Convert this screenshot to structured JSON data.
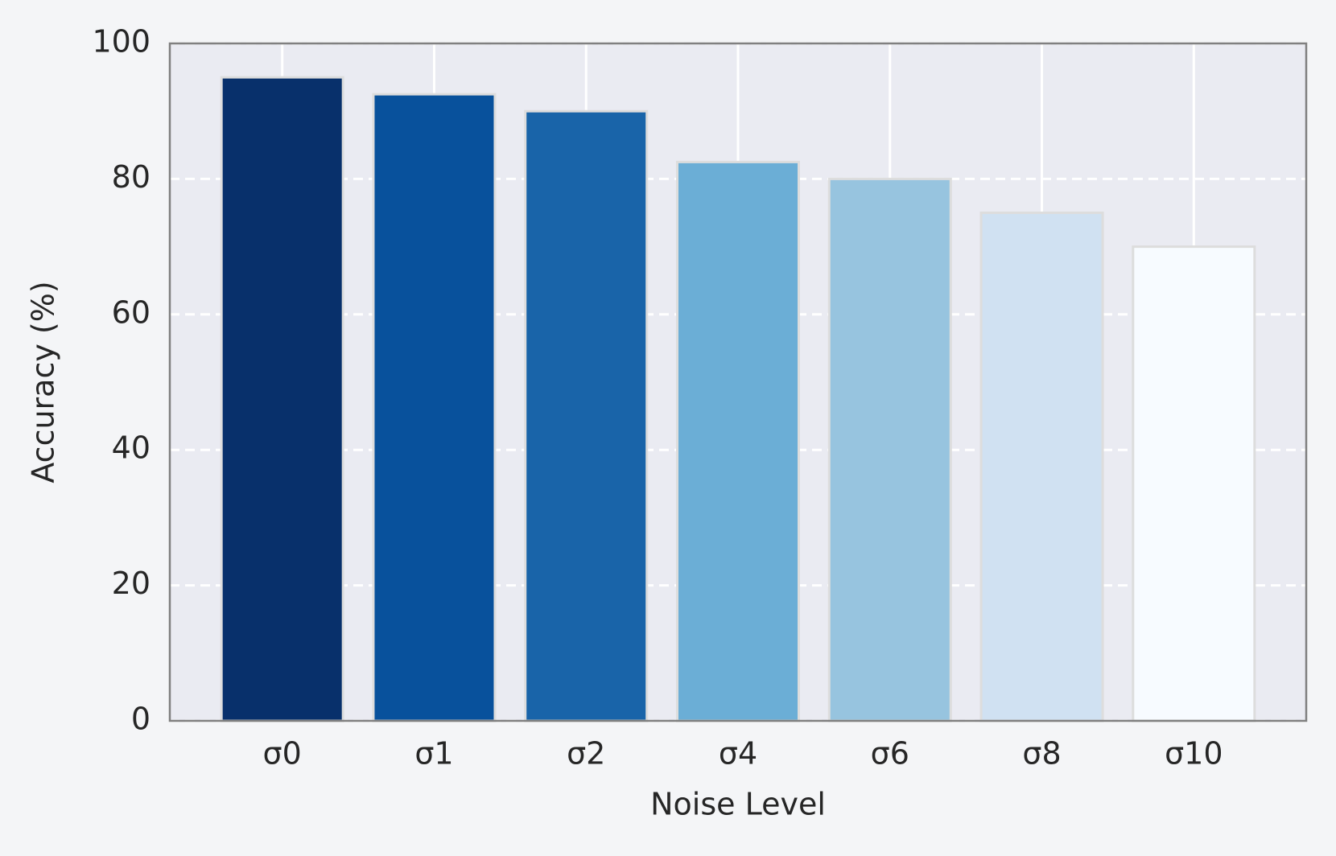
{
  "chart_data": {
    "type": "bar",
    "x_label": "Noise Level",
    "y_label": "Accuracy (%)",
    "categories": [
      "σ0",
      "σ1",
      "σ2",
      "σ4",
      "σ6",
      "σ8",
      "σ10"
    ],
    "values": [
      95,
      92.5,
      90,
      82.5,
      80,
      75,
      70
    ],
    "colors": [
      "#08306b",
      "#08519c",
      "#1964a9",
      "#6baed6",
      "#97c4df",
      "#d0e1f2",
      "#f7fbff"
    ],
    "edge_color": "#dddddd",
    "ylim": [
      0,
      100
    ],
    "yticks": [
      0,
      20,
      40,
      60,
      80,
      100
    ],
    "grid": true
  }
}
